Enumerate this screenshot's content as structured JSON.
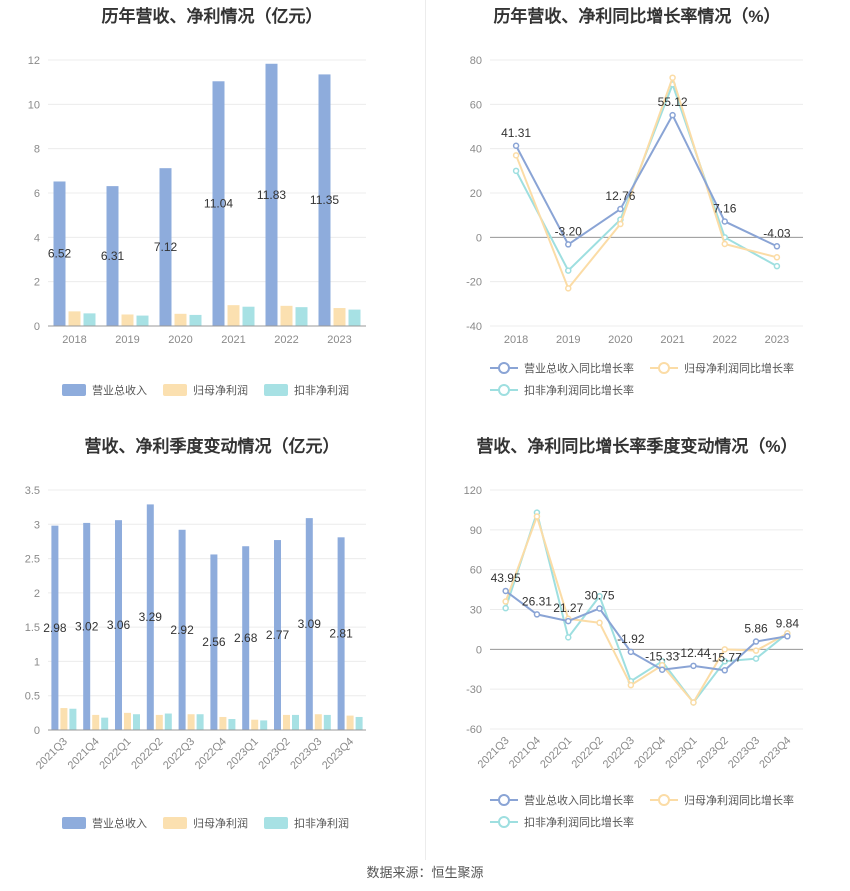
{
  "source_text": "数据来源：恒生聚源",
  "colors": {
    "revenue": "#8eacdc",
    "parent_net": "#fbe0b0",
    "deducted_net": "#a7e1e4",
    "revenue_line": "#8aa4d5",
    "parent_line": "#fbdca6",
    "deducted_line": "#9edfe0"
  },
  "chart_data": [
    {
      "type": "bar",
      "title": "历年营收、净利情况（亿元）",
      "categories": [
        "2018",
        "2019",
        "2020",
        "2021",
        "2022",
        "2023"
      ],
      "ylim": [
        0,
        12
      ],
      "yticks": [
        "0",
        "2",
        "4",
        "6",
        "8",
        "10",
        "12"
      ],
      "series": [
        {
          "name": "营业总收入",
          "values": [
            6.52,
            6.31,
            7.12,
            11.04,
            11.83,
            11.35
          ],
          "labels": [
            "6.52",
            "6.31",
            "7.12",
            "11.04",
            "11.83",
            "11.35"
          ]
        },
        {
          "name": "归母净利润",
          "values": [
            0.66,
            0.52,
            0.55,
            0.94,
            0.91,
            0.81
          ]
        },
        {
          "name": "扣非净利润",
          "values": [
            0.57,
            0.47,
            0.5,
            0.87,
            0.85,
            0.74
          ]
        }
      ],
      "legend": "bottom"
    },
    {
      "type": "line",
      "title": "历年营收、净利同比增长率情况（%）",
      "categories": [
        "2018",
        "2019",
        "2020",
        "2021",
        "2022",
        "2023"
      ],
      "ylim": [
        -40,
        80
      ],
      "yticks": [
        "-40",
        "-20",
        "0",
        "20",
        "40",
        "60",
        "80"
      ],
      "series": [
        {
          "name": "营业总收入同比增长率",
          "values": [
            41.31,
            -3.2,
            12.76,
            55.12,
            7.16,
            -4.03
          ],
          "labels": [
            "41.31",
            "-3.20",
            "12.76",
            "55.12",
            "7.16",
            "-4.03"
          ]
        },
        {
          "name": "归母净利润同比增长率",
          "values": [
            37,
            -23,
            6,
            72,
            -3,
            -9
          ]
        },
        {
          "name": "扣非净利润同比增长率",
          "values": [
            30,
            -15,
            8,
            69,
            0,
            -13
          ]
        }
      ],
      "legend": "bottom"
    },
    {
      "type": "bar",
      "title": "营收、净利季度变动情况（亿元）",
      "categories": [
        "2021Q3",
        "2021Q4",
        "2022Q1",
        "2022Q2",
        "2022Q3",
        "2022Q4",
        "2023Q1",
        "2023Q2",
        "2023Q3",
        "2023Q4"
      ],
      "ylim": [
        0,
        3.5
      ],
      "yticks": [
        "0",
        "0.5",
        "1",
        "1.5",
        "2",
        "2.5",
        "3",
        "3.5"
      ],
      "series": [
        {
          "name": "营业总收入",
          "values": [
            2.98,
            3.02,
            3.06,
            3.29,
            2.92,
            2.56,
            2.68,
            2.77,
            3.09,
            2.81
          ],
          "labels": [
            "2.98",
            "3.02",
            "3.06",
            "3.29",
            "2.92",
            "2.56",
            "2.68",
            "2.77",
            "3.09",
            "2.81"
          ]
        },
        {
          "name": "归母净利润",
          "values": [
            0.32,
            0.22,
            0.25,
            0.22,
            0.23,
            0.19,
            0.15,
            0.22,
            0.23,
            0.21
          ]
        },
        {
          "name": "扣非净利润",
          "values": [
            0.31,
            0.18,
            0.23,
            0.24,
            0.23,
            0.16,
            0.14,
            0.22,
            0.22,
            0.19
          ]
        }
      ],
      "legend": "bottom"
    },
    {
      "type": "line",
      "title": "营收、净利同比增长率季度变动情况（%）",
      "categories": [
        "2021Q3",
        "2021Q4",
        "2022Q1",
        "2022Q2",
        "2022Q3",
        "2022Q4",
        "2023Q1",
        "2023Q2",
        "2023Q3",
        "2023Q4"
      ],
      "ylim": [
        -60,
        120
      ],
      "yticks": [
        "-60",
        "-30",
        "0",
        "30",
        "60",
        "90",
        "120"
      ],
      "series": [
        {
          "name": "营业总收入同比增长率",
          "values": [
            43.95,
            26.31,
            21.27,
            30.75,
            -1.92,
            -15.33,
            -12.44,
            -15.77,
            5.86,
            9.84
          ],
          "labels": [
            "43.95",
            "26.31",
            "21.27",
            "30.75",
            "-1.92",
            "-15.33",
            "-12.44",
            "-15.77",
            "5.86",
            "9.84"
          ]
        },
        {
          "name": "归母净利润同比增长率",
          "values": [
            36,
            100,
            23,
            20,
            -27,
            -12,
            -40,
            0,
            -1,
            12
          ]
        },
        {
          "name": "扣非净利润同比增长率",
          "values": [
            31,
            103,
            9,
            40,
            -24,
            -9,
            -40,
            -9,
            -7,
            12
          ]
        }
      ],
      "legend": "bottom"
    }
  ]
}
